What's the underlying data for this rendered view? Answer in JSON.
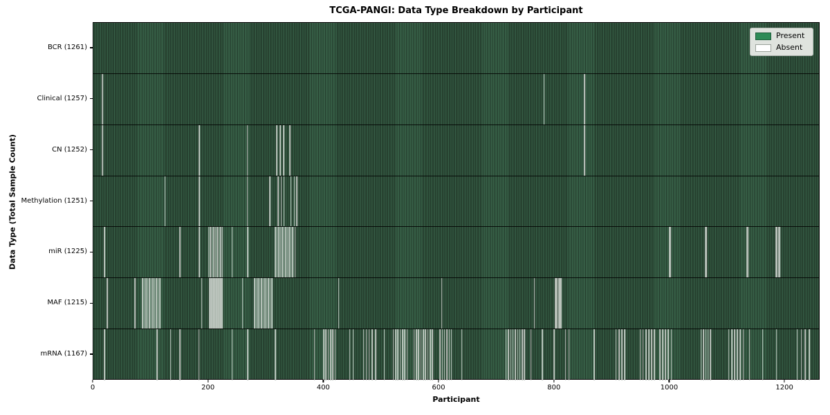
{
  "title": "TCGA-PANGI: Data Type Breakdown by Participant",
  "chart_data": {
    "type": "heatmap",
    "title": "TCGA-PANGI: Data Type Breakdown by Participant",
    "xlabel": "Participant",
    "ylabel": "Data Type (Total Sample Count)",
    "x_ticks": [
      0,
      200,
      400,
      600,
      800,
      1000,
      1200
    ],
    "x_max": 1261,
    "grid": false,
    "legend_position": "upper right",
    "legend": [
      {
        "label": "Present",
        "color": "#2e8b57",
        "edge": "#1e5e3a"
      },
      {
        "label": "Absent",
        "color": "#ffffff",
        "edge": "#9aa19a"
      }
    ],
    "colors": {
      "present_fill": "#2e8b57",
      "present_stripe_light": "#3b684d",
      "present_stripe_dark": "#213628",
      "absent_fill": "#c2cac3"
    },
    "rows": [
      {
        "label": "BCR (1261)",
        "data_type": "BCR",
        "present_count": 1261,
        "absent_participants": []
      },
      {
        "label": "Clinical (1257)",
        "data_type": "Clinical",
        "present_count": 1257,
        "absent_participants": [
          15,
          16,
          783,
          853
        ]
      },
      {
        "label": "CN (1252)",
        "data_type": "CN",
        "present_count": 1252,
        "absent_participants": [
          15,
          16,
          184,
          267,
          318,
          324,
          330,
          341,
          853
        ]
      },
      {
        "label": "Methylation (1251)",
        "data_type": "Methylation",
        "present_count": 1251,
        "absent_participants": [
          124,
          184,
          267,
          306,
          321,
          326,
          331,
          343,
          349,
          353
        ]
      },
      {
        "label": "miR (1225)",
        "data_type": "miR",
        "present_count": 1225,
        "absent_participants": [
          19,
          150,
          184,
          200,
          203,
          206,
          209,
          212,
          215,
          218,
          221,
          224,
          241,
          268,
          316,
          319,
          322,
          325,
          328,
          331,
          334,
          337,
          340,
          343,
          346,
          350,
          1001,
          1003,
          1063,
          1065,
          1135,
          1137,
          1186,
          1188,
          1191,
          1193
        ]
      },
      {
        "label": "MAF (1215)",
        "data_type": "MAF",
        "present_count": 1215,
        "absent_participants": [
          24,
          72,
          85,
          88,
          91,
          94,
          97,
          100,
          103,
          106,
          109,
          112,
          115,
          188,
          202,
          204,
          206,
          208,
          210,
          212,
          214,
          216,
          218,
          220,
          222,
          224,
          259,
          280,
          283,
          286,
          289,
          292,
          295,
          298,
          301,
          304,
          307,
          310,
          426,
          605,
          766,
          803,
          805,
          809,
          811,
          813
        ]
      },
      {
        "label": "mRNA (1167)",
        "data_type": "mRNA",
        "present_count": 1167,
        "absent_participants": [
          19,
          110,
          134,
          150,
          183,
          241,
          268,
          316,
          384,
          400,
          404,
          408,
          412,
          416,
          420,
          445,
          451,
          469,
          474,
          479,
          484,
          490,
          505,
          521,
          525,
          529,
          533,
          537,
          541,
          545,
          557,
          561,
          565,
          569,
          573,
          577,
          581,
          585,
          589,
          602,
          606,
          610,
          614,
          618,
          622,
          640,
          717,
          721,
          725,
          729,
          733,
          737,
          741,
          745,
          749,
          760,
          780,
          800,
          820,
          826,
          870,
          908,
          913,
          918,
          923,
          950,
          955,
          960,
          965,
          970,
          975,
          984,
          989,
          994,
          999,
          1004,
          1056,
          1060,
          1064,
          1068,
          1072,
          1104,
          1109,
          1114,
          1119,
          1124,
          1129,
          1140,
          1163,
          1187,
          1223,
          1230,
          1237,
          1244
        ]
      }
    ]
  }
}
